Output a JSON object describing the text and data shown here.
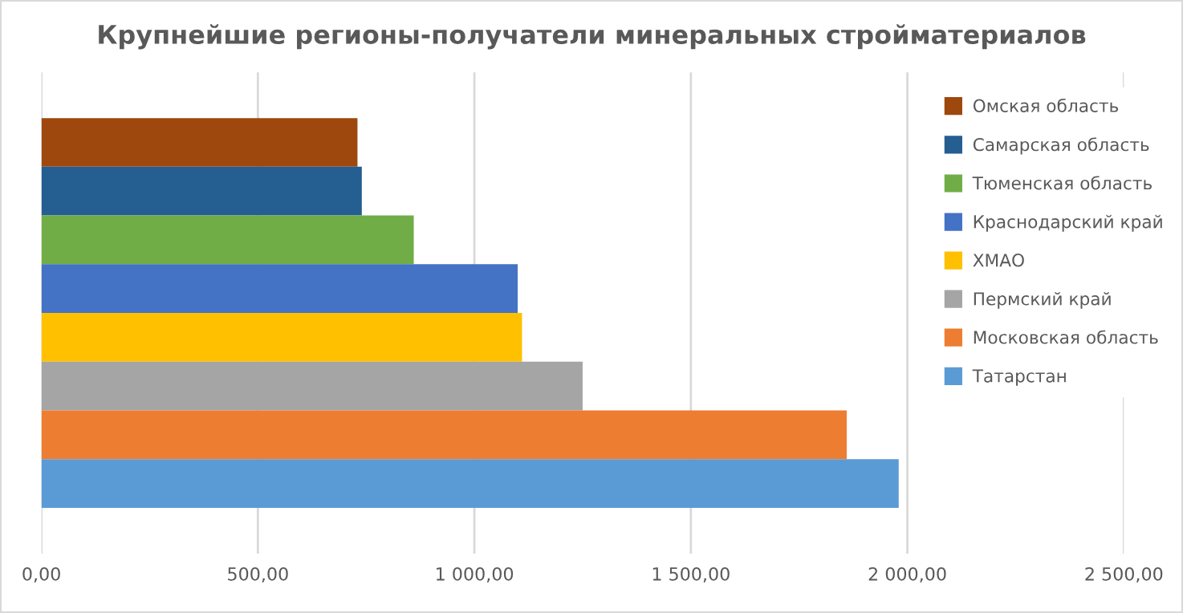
{
  "chart_data": {
    "type": "bar",
    "orientation": "horizontal",
    "title": "Крупнейшие регионы-получатели минеральных стройматериалов",
    "categories": [
      null
    ],
    "series": [
      {
        "name": "Омская область",
        "color": "#9e480e",
        "values": [
          730
        ]
      },
      {
        "name": "Самарская область",
        "color": "#255e91",
        "values": [
          740
        ]
      },
      {
        "name": "Тюменская область",
        "color": "#70ad47",
        "values": [
          860
        ]
      },
      {
        "name": "Краснодарский край",
        "color": "#4472c4",
        "values": [
          1100
        ]
      },
      {
        "name": "ХМАО",
        "color": "#ffc000",
        "values": [
          1110
        ]
      },
      {
        "name": "Пермский край",
        "color": "#a5a5a5",
        "values": [
          1250
        ]
      },
      {
        "name": "Московская область",
        "color": "#ed7d31",
        "values": [
          1860
        ]
      },
      {
        "name": "Татарстан",
        "color": "#5b9bd5",
        "values": [
          1980
        ]
      }
    ],
    "xlim": [
      0,
      2500
    ],
    "xticks": [
      {
        "value": 0,
        "label": "0,00"
      },
      {
        "value": 500,
        "label": "500,00"
      },
      {
        "value": 1000,
        "label": "1 000,00"
      },
      {
        "value": 1500,
        "label": "1 500,00"
      },
      {
        "value": 2000,
        "label": "2 000,00"
      },
      {
        "value": 2500,
        "label": "2 500,00"
      }
    ],
    "grid": "x",
    "legend": "right"
  }
}
